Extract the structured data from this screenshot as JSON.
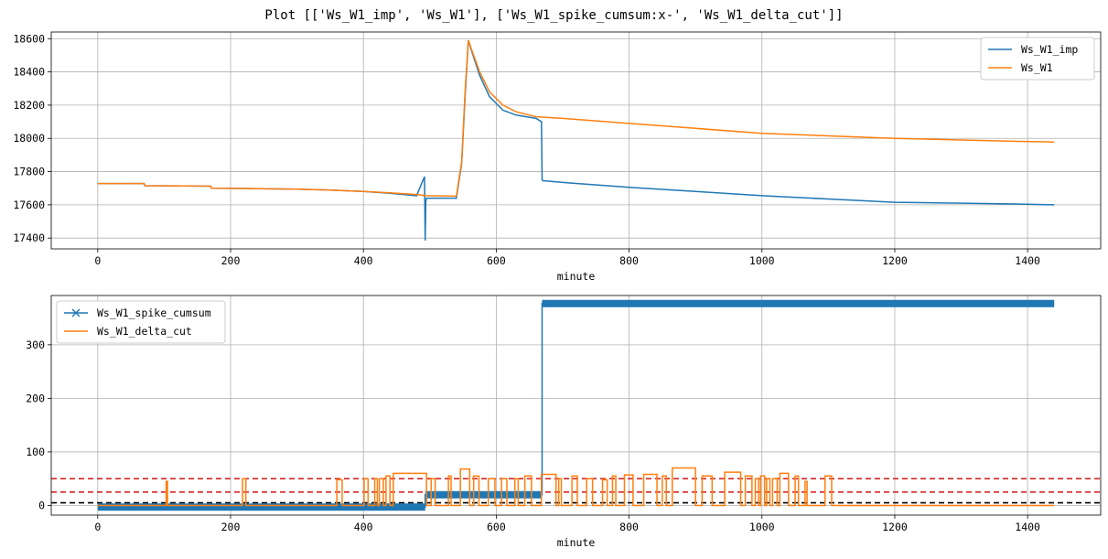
{
  "figure": {
    "title": "Plot [['Ws_W1_imp', 'Ws_W1'], ['Ws_W1_spike_cumsum:x-', 'Ws_W1_delta_cut']]"
  },
  "colors": {
    "blue": "#1f77b4",
    "orange": "#ff7f0e",
    "red": "#d62728",
    "black": "#000000",
    "grid": "#b0b0b0"
  },
  "chart_data": [
    {
      "type": "line",
      "title": "",
      "xlabel": "minute",
      "ylabel": "",
      "xlim": [
        -70,
        1510
      ],
      "ylim": [
        17335,
        18640
      ],
      "xticks": [
        0,
        200,
        400,
        600,
        800,
        1000,
        1200,
        1400
      ],
      "yticks": [
        17400,
        17600,
        17800,
        18000,
        18200,
        18400,
        18600
      ],
      "grid": true,
      "legend_position": "top-right",
      "series": [
        {
          "name": "Ws_W1_imp",
          "color": "#1f77b4",
          "x": [
            0,
            70,
            71,
            130,
            170,
            171,
            230,
            300,
            350,
            400,
            440,
            480,
            492,
            493,
            494,
            495,
            496,
            540,
            548,
            553,
            558,
            565,
            575,
            590,
            610,
            630,
            660,
            668,
            669,
            670,
            671,
            700,
            800,
            900,
            1000,
            1100,
            1200,
            1300,
            1384,
            1440
          ],
          "y": [
            17728,
            17728,
            17715,
            17714,
            17712,
            17700,
            17698,
            17694,
            17689,
            17680,
            17670,
            17655,
            17770,
            17385,
            17620,
            17640,
            17640,
            17640,
            17850,
            18250,
            18590,
            18500,
            18380,
            18250,
            18170,
            18140,
            18120,
            18100,
            17750,
            17745,
            17745,
            17735,
            17705,
            17680,
            17655,
            17635,
            17615,
            17610,
            17605,
            17600
          ]
        },
        {
          "name": "Ws_W1",
          "color": "#ff7f0e",
          "x": [
            0,
            70,
            71,
            130,
            170,
            171,
            230,
            300,
            350,
            400,
            440,
            480,
            495,
            540,
            548,
            553,
            558,
            565,
            575,
            590,
            610,
            630,
            660,
            700,
            800,
            900,
            1000,
            1100,
            1200,
            1300,
            1384,
            1440
          ],
          "y": [
            17728,
            17728,
            17715,
            17714,
            17712,
            17700,
            17698,
            17694,
            17689,
            17680,
            17672,
            17662,
            17655,
            17652,
            17860,
            18280,
            18590,
            18510,
            18400,
            18280,
            18200,
            18160,
            18130,
            18120,
            18090,
            18060,
            18030,
            18015,
            18000,
            17990,
            17982,
            17978
          ]
        }
      ]
    },
    {
      "type": "line",
      "title": "",
      "xlabel": "minute",
      "ylabel": "",
      "xlim": [
        -70,
        1510
      ],
      "ylim": [
        -18,
        392
      ],
      "xticks": [
        0,
        200,
        400,
        600,
        800,
        1000,
        1200,
        1400
      ],
      "yticks": [
        0,
        100,
        200,
        300
      ],
      "grid": true,
      "legend_position": "top-left",
      "hlines": [
        {
          "y": 50,
          "color": "#d62728",
          "style": "dashed"
        },
        {
          "y": 25,
          "color": "#d62728",
          "style": "dashed"
        },
        {
          "y": 5,
          "color": "#000000",
          "style": "dashed"
        }
      ],
      "series": [
        {
          "name": "Ws_W1_spike_cumsum",
          "color": "#1f77b4",
          "marker": "x",
          "segments": [
            {
              "x_start": 0,
              "x_end": 493,
              "y": -3
            },
            {
              "x_start": 493,
              "x_end": 669,
              "y": 20
            },
            {
              "x_start": 669,
              "x_end": 1440,
              "y": 377
            }
          ]
        },
        {
          "name": "Ws_W1_delta_cut",
          "color": "#ff7f0e",
          "pulses": [
            [
              103,
              105,
              45
            ],
            [
              218,
              223,
              50
            ],
            [
              360,
              368,
              48
            ],
            [
              401,
              407,
              50
            ],
            [
              417,
              421,
              50
            ],
            [
              424,
              430,
              50
            ],
            [
              434,
              440,
              55
            ],
            [
              445,
              495,
              60
            ],
            [
              502,
              508,
              50
            ],
            [
              528,
              532,
              55
            ],
            [
              546,
              560,
              68
            ],
            [
              566,
              574,
              55
            ],
            [
              588,
              598,
              50
            ],
            [
              608,
              616,
              50
            ],
            [
              628,
              633,
              50
            ],
            [
              643,
              653,
              55
            ],
            [
              668,
              690,
              58
            ],
            [
              694,
              698,
              50
            ],
            [
              714,
              722,
              55
            ],
            [
              736,
              745,
              50
            ],
            [
              760,
              767,
              48
            ],
            [
              775,
              780,
              55
            ],
            [
              793,
              806,
              57
            ],
            [
              822,
              842,
              58
            ],
            [
              850,
              856,
              55
            ],
            [
              865,
              900,
              70
            ],
            [
              910,
              925,
              55
            ],
            [
              944,
              968,
              62
            ],
            [
              975,
              985,
              55
            ],
            [
              990,
              995,
              50
            ],
            [
              998,
              1004,
              55
            ],
            [
              1007,
              1012,
              50
            ],
            [
              1016,
              1023,
              50
            ],
            [
              1027,
              1040,
              60
            ],
            [
              1050,
              1055,
              55
            ],
            [
              1065,
              1068,
              45
            ],
            [
              1095,
              1105,
              55
            ]
          ],
          "base": 0
        }
      ]
    }
  ]
}
